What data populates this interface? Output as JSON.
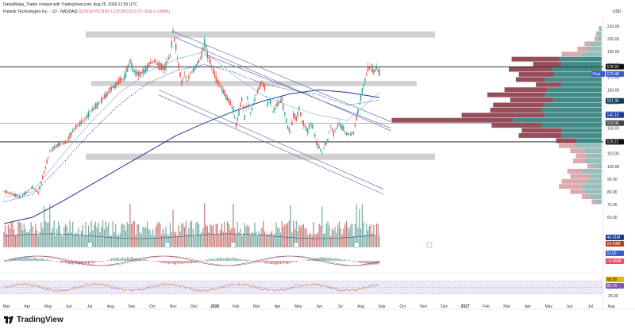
{
  "header": {
    "publisher": "DanielMejia_Trader created with TradingView.com, Aug 25, 2026 21:55 UTC",
    "symbol": "Palantir Technologies Inc. · 1D · NASDAQ",
    "o": "O176.63",
    "h": "H179.87",
    "l": "L172.30",
    "c": "C172.73",
    "chg": "−3.16 (−1.80%)",
    "currency": "USD"
  },
  "brand": "TradingView",
  "colors": {
    "up": "#26a69a",
    "down": "#ef5350",
    "up_bar": "#5b9b8f",
    "down_bar": "#c0605e",
    "vp_up": "#8db7b4",
    "vp_down": "#d7a1a4",
    "vp_up_va": "#2f7e7b",
    "vp_down_va": "#8b3b48",
    "ma_dark": "#1f3a93",
    "ma_light": "#8fb3e8"
  },
  "chart_data": {
    "type": "candlestick",
    "ylim": [
      60,
      215
    ],
    "y_ticks": [
      60,
      70,
      80,
      90,
      100,
      110,
      120,
      130,
      140,
      150,
      160,
      170,
      180,
      190,
      200,
      210
    ],
    "x_ticks": [
      "Mar",
      "Apr",
      "May",
      "Jun",
      "Jul",
      "Aug",
      "Sep",
      "Oct",
      "Nov",
      "Dec",
      "2026",
      "Feb",
      "Mar",
      "Apr",
      "May",
      "Jun",
      "Jul",
      "Aug",
      "Sep",
      "Oct",
      "Nov",
      "Dec",
      "2027",
      "Feb",
      "Mar",
      "Apr",
      "May",
      "Jun",
      "Jul",
      "Aug"
    ],
    "price_path": [
      [
        0,
        80
      ],
      [
        4,
        79
      ],
      [
        8,
        77
      ],
      [
        12,
        76
      ],
      [
        16,
        80
      ],
      [
        20,
        84
      ],
      [
        24,
        79
      ],
      [
        28,
        95
      ],
      [
        32,
        112
      ],
      [
        38,
        117
      ],
      [
        44,
        119
      ],
      [
        48,
        128
      ],
      [
        52,
        133
      ],
      [
        56,
        136
      ],
      [
        60,
        143
      ],
      [
        64,
        147
      ],
      [
        68,
        152
      ],
      [
        72,
        157
      ],
      [
        76,
        162
      ],
      [
        80,
        166
      ],
      [
        84,
        170
      ],
      [
        88,
        182
      ],
      [
        90,
        176
      ],
      [
        94,
        172
      ],
      [
        98,
        175
      ],
      [
        102,
        181
      ],
      [
        106,
        183
      ],
      [
        108,
        178
      ],
      [
        112,
        177
      ],
      [
        116,
        187
      ],
      [
        118,
        206
      ],
      [
        120,
        193
      ],
      [
        122,
        178
      ],
      [
        124,
        165
      ],
      [
        126,
        173
      ],
      [
        128,
        167
      ],
      [
        130,
        172
      ],
      [
        134,
        179
      ],
      [
        138,
        187
      ],
      [
        140,
        198
      ],
      [
        142,
        188
      ],
      [
        144,
        182
      ],
      [
        148,
        168
      ],
      [
        152,
        161
      ],
      [
        156,
        153
      ],
      [
        160,
        145
      ],
      [
        162,
        132
      ],
      [
        166,
        153
      ],
      [
        168,
        139
      ],
      [
        170,
        154
      ],
      [
        172,
        142
      ],
      [
        176,
        156
      ],
      [
        180,
        166
      ],
      [
        182,
        161
      ],
      [
        184,
        149
      ],
      [
        186,
        151
      ],
      [
        188,
        143
      ],
      [
        190,
        148
      ],
      [
        194,
        152
      ],
      [
        198,
        131
      ],
      [
        200,
        127
      ],
      [
        202,
        140
      ],
      [
        204,
        137
      ],
      [
        206,
        146
      ],
      [
        208,
        135
      ],
      [
        212,
        128
      ],
      [
        214,
        133
      ],
      [
        216,
        131
      ],
      [
        218,
        118
      ],
      [
        220,
        115
      ],
      [
        222,
        111
      ],
      [
        224,
        117
      ],
      [
        226,
        121
      ],
      [
        228,
        132
      ],
      [
        230,
        125
      ],
      [
        232,
        130
      ],
      [
        234,
        134
      ],
      [
        236,
        131
      ],
      [
        238,
        127
      ],
      [
        240,
        125
      ],
      [
        244,
        126
      ],
      [
        248,
        149
      ],
      [
        250,
        160
      ],
      [
        252,
        168
      ],
      [
        254,
        176
      ],
      [
        256,
        178
      ],
      [
        258,
        174
      ],
      [
        260,
        177
      ],
      [
        262,
        173
      ]
    ],
    "moving_averages": [
      {
        "values": [
          [
            0,
            55
          ],
          [
            20,
            60
          ],
          [
            40,
            72
          ],
          [
            60,
            85
          ],
          [
            80,
            98
          ],
          [
            100,
            111
          ],
          [
            120,
            124
          ],
          [
            140,
            134
          ],
          [
            160,
            143
          ],
          [
            180,
            151
          ],
          [
            200,
            157
          ],
          [
            220,
            160
          ],
          [
            240,
            158
          ],
          [
            262,
            154
          ]
        ]
      },
      {
        "style": "dotted",
        "values": [
          [
            0,
            72
          ],
          [
            20,
            78
          ],
          [
            40,
            101
          ],
          [
            60,
            126
          ],
          [
            80,
            148
          ],
          [
            100,
            165
          ],
          [
            120,
            175
          ],
          [
            140,
            180
          ],
          [
            160,
            174
          ],
          [
            180,
            165
          ],
          [
            200,
            160
          ],
          [
            220,
            156
          ],
          [
            240,
            148
          ],
          [
            262,
            152
          ]
        ]
      },
      {
        "values": [
          [
            0,
            76
          ],
          [
            20,
            80
          ],
          [
            40,
            108
          ],
          [
            60,
            134
          ],
          [
            80,
            157
          ],
          [
            100,
            174
          ],
          [
            120,
            184
          ],
          [
            140,
            190
          ],
          [
            160,
            172
          ],
          [
            180,
            156
          ],
          [
            200,
            147
          ],
          [
            220,
            140
          ],
          [
            240,
            136
          ],
          [
            262,
            158
          ]
        ]
      }
    ],
    "horizontal_levels": [
      178.21,
      119.21,
      133.96
    ],
    "price_labels": [
      {
        "text": "210.00",
        "value": 210
      },
      {
        "text": "200.00",
        "value": 200
      },
      {
        "text": "190.00",
        "value": 190
      },
      {
        "text": "178.21",
        "value": 178.21
      },
      {
        "text": "PLTR",
        "value": 172.73
      },
      {
        "text": "172.73",
        "value": 172.73
      },
      {
        "text": "Post",
        "value": 172.48
      },
      {
        "text": "172.48",
        "value": 172.48
      },
      {
        "text": "151.36",
        "value": 151.36
      },
      {
        "text": "140.92",
        "value": 140.92
      },
      {
        "text": "140.18",
        "value": 140.18
      },
      {
        "text": "133.96",
        "value": 133.96
      },
      {
        "text": "119.21",
        "value": 119.21
      }
    ],
    "zones": [
      {
        "from": 201,
        "to": 206
      },
      {
        "from": 163,
        "to": 167
      },
      {
        "from": 105,
        "to": 110
      }
    ],
    "trend_channels": [
      {
        "from": [
          118,
          206
        ],
        "to": [
          270,
          135
        ]
      },
      {
        "from": [
          120,
          201
        ],
        "to": [
          270,
          128
        ]
      },
      {
        "from": [
          140,
          188
        ],
        "to": [
          270,
          130
        ]
      },
      {
        "from": [
          108,
          160
        ],
        "to": [
          265,
          82
        ]
      },
      {
        "from": [
          108,
          156
        ],
        "to": [
          265,
          78
        ]
      }
    ],
    "volume_profile": [
      {
        "price": 208,
        "up": 2,
        "down": 0
      },
      {
        "price": 204,
        "up": 3,
        "down": 1
      },
      {
        "price": 200,
        "up": 3,
        "down": 2
      },
      {
        "price": 196,
        "up": 8,
        "down": 4
      },
      {
        "price": 192,
        "up": 10,
        "down": 7
      },
      {
        "price": 188,
        "up": 14,
        "down": 14
      },
      {
        "price": 184,
        "up": 30,
        "down": 33
      },
      {
        "price": 180,
        "up": 28,
        "down": 20
      },
      {
        "price": 176,
        "up": 35,
        "down": 30
      },
      {
        "price": 172,
        "up": 33,
        "down": 25
      },
      {
        "price": 168,
        "up": 40,
        "down": 20
      },
      {
        "price": 164,
        "up": 28,
        "down": 18
      },
      {
        "price": 160,
        "up": 38,
        "down": 30
      },
      {
        "price": 156,
        "up": 40,
        "down": 40
      },
      {
        "price": 152,
        "up": 34,
        "down": 30
      },
      {
        "price": 148,
        "up": 40,
        "down": 36
      },
      {
        "price": 144,
        "up": 42,
        "down": 36
      },
      {
        "price": 140,
        "up": 40,
        "down": 58
      },
      {
        "price": 136,
        "up": 62,
        "down": 85
      },
      {
        "price": 132,
        "up": 42,
        "down": 35
      },
      {
        "price": 128,
        "up": 28,
        "down": 28
      },
      {
        "price": 124,
        "up": 28,
        "down": 30
      },
      {
        "price": 120,
        "up": 18,
        "down": 14
      },
      {
        "price": 116,
        "up": 18,
        "down": 12
      },
      {
        "price": 112,
        "up": 12,
        "down": 10
      },
      {
        "price": 108,
        "up": 10,
        "down": 8
      },
      {
        "price": 104,
        "up": 12,
        "down": 8
      },
      {
        "price": 100,
        "up": 6,
        "down": 4
      },
      {
        "price": 96,
        "up": 14,
        "down": 10
      },
      {
        "price": 92,
        "up": 8,
        "down": 14
      },
      {
        "price": 88,
        "up": 10,
        "down": 18
      },
      {
        "price": 84,
        "up": 14,
        "down": 16
      },
      {
        "price": 80,
        "up": 12,
        "down": 10
      },
      {
        "price": 76,
        "up": 8,
        "down": 6
      },
      {
        "price": 72,
        "up": 4,
        "down": 3
      }
    ],
    "volume": {
      "labels": [
        "46.61M",
        "24.59M"
      ]
    },
    "macd": {
      "labels": [
        "11.02",
        "−0.0698"
      ]
    },
    "rsi": {
      "labels": [
        "68.58",
        "65.76",
        "50.00",
        "25.00"
      ],
      "tick_labels": [
        "75.00",
        "50.00",
        "25.00"
      ],
      "levels": [
        70,
        50,
        30
      ]
    }
  }
}
